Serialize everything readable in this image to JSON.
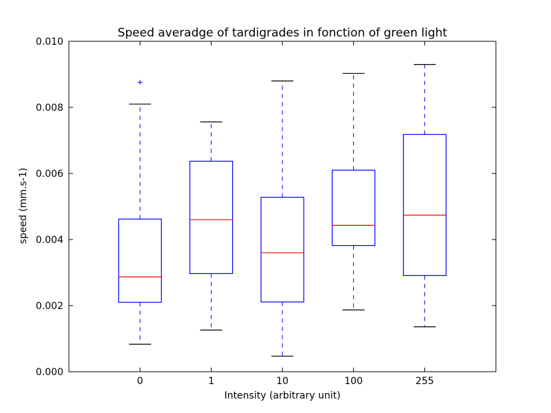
{
  "chart_data": {
    "type": "box",
    "title": "Speed averadge of tardigrades in fonction of green light",
    "xlabel": "Intensity (arbitrary unit)",
    "ylabel": "speed (mm.s-1)",
    "ylim": [
      0.0,
      0.01
    ],
    "yticks": [
      "0.000",
      "0.002",
      "0.004",
      "0.006",
      "0.008",
      "0.010"
    ],
    "categories": [
      "0",
      "1",
      "10",
      "100",
      "255"
    ],
    "boxes": [
      {
        "category": "0",
        "whisker_low": 0.00083,
        "q1": 0.0021,
        "median": 0.00287,
        "q3": 0.00462,
        "whisker_high": 0.0081,
        "outliers": [
          0.00876
        ]
      },
      {
        "category": "1",
        "whisker_low": 0.00126,
        "q1": 0.00297,
        "median": 0.0046,
        "q3": 0.00637,
        "whisker_high": 0.00756,
        "outliers": []
      },
      {
        "category": "10",
        "whisker_low": 0.00047,
        "q1": 0.00211,
        "median": 0.0036,
        "q3": 0.00528,
        "whisker_high": 0.0088,
        "outliers": []
      },
      {
        "category": "100",
        "whisker_low": 0.00187,
        "q1": 0.00382,
        "median": 0.00443,
        "q3": 0.0061,
        "whisker_high": 0.00903,
        "outliers": []
      },
      {
        "category": "255",
        "whisker_low": 0.00136,
        "q1": 0.00291,
        "median": 0.00474,
        "q3": 0.00718,
        "whisker_high": 0.0093,
        "outliers": []
      }
    ],
    "colors": {
      "box": "#0000ff",
      "median": "#ff0000",
      "cap": "#000000",
      "outlier": "#0000ff"
    },
    "grid": false
  }
}
